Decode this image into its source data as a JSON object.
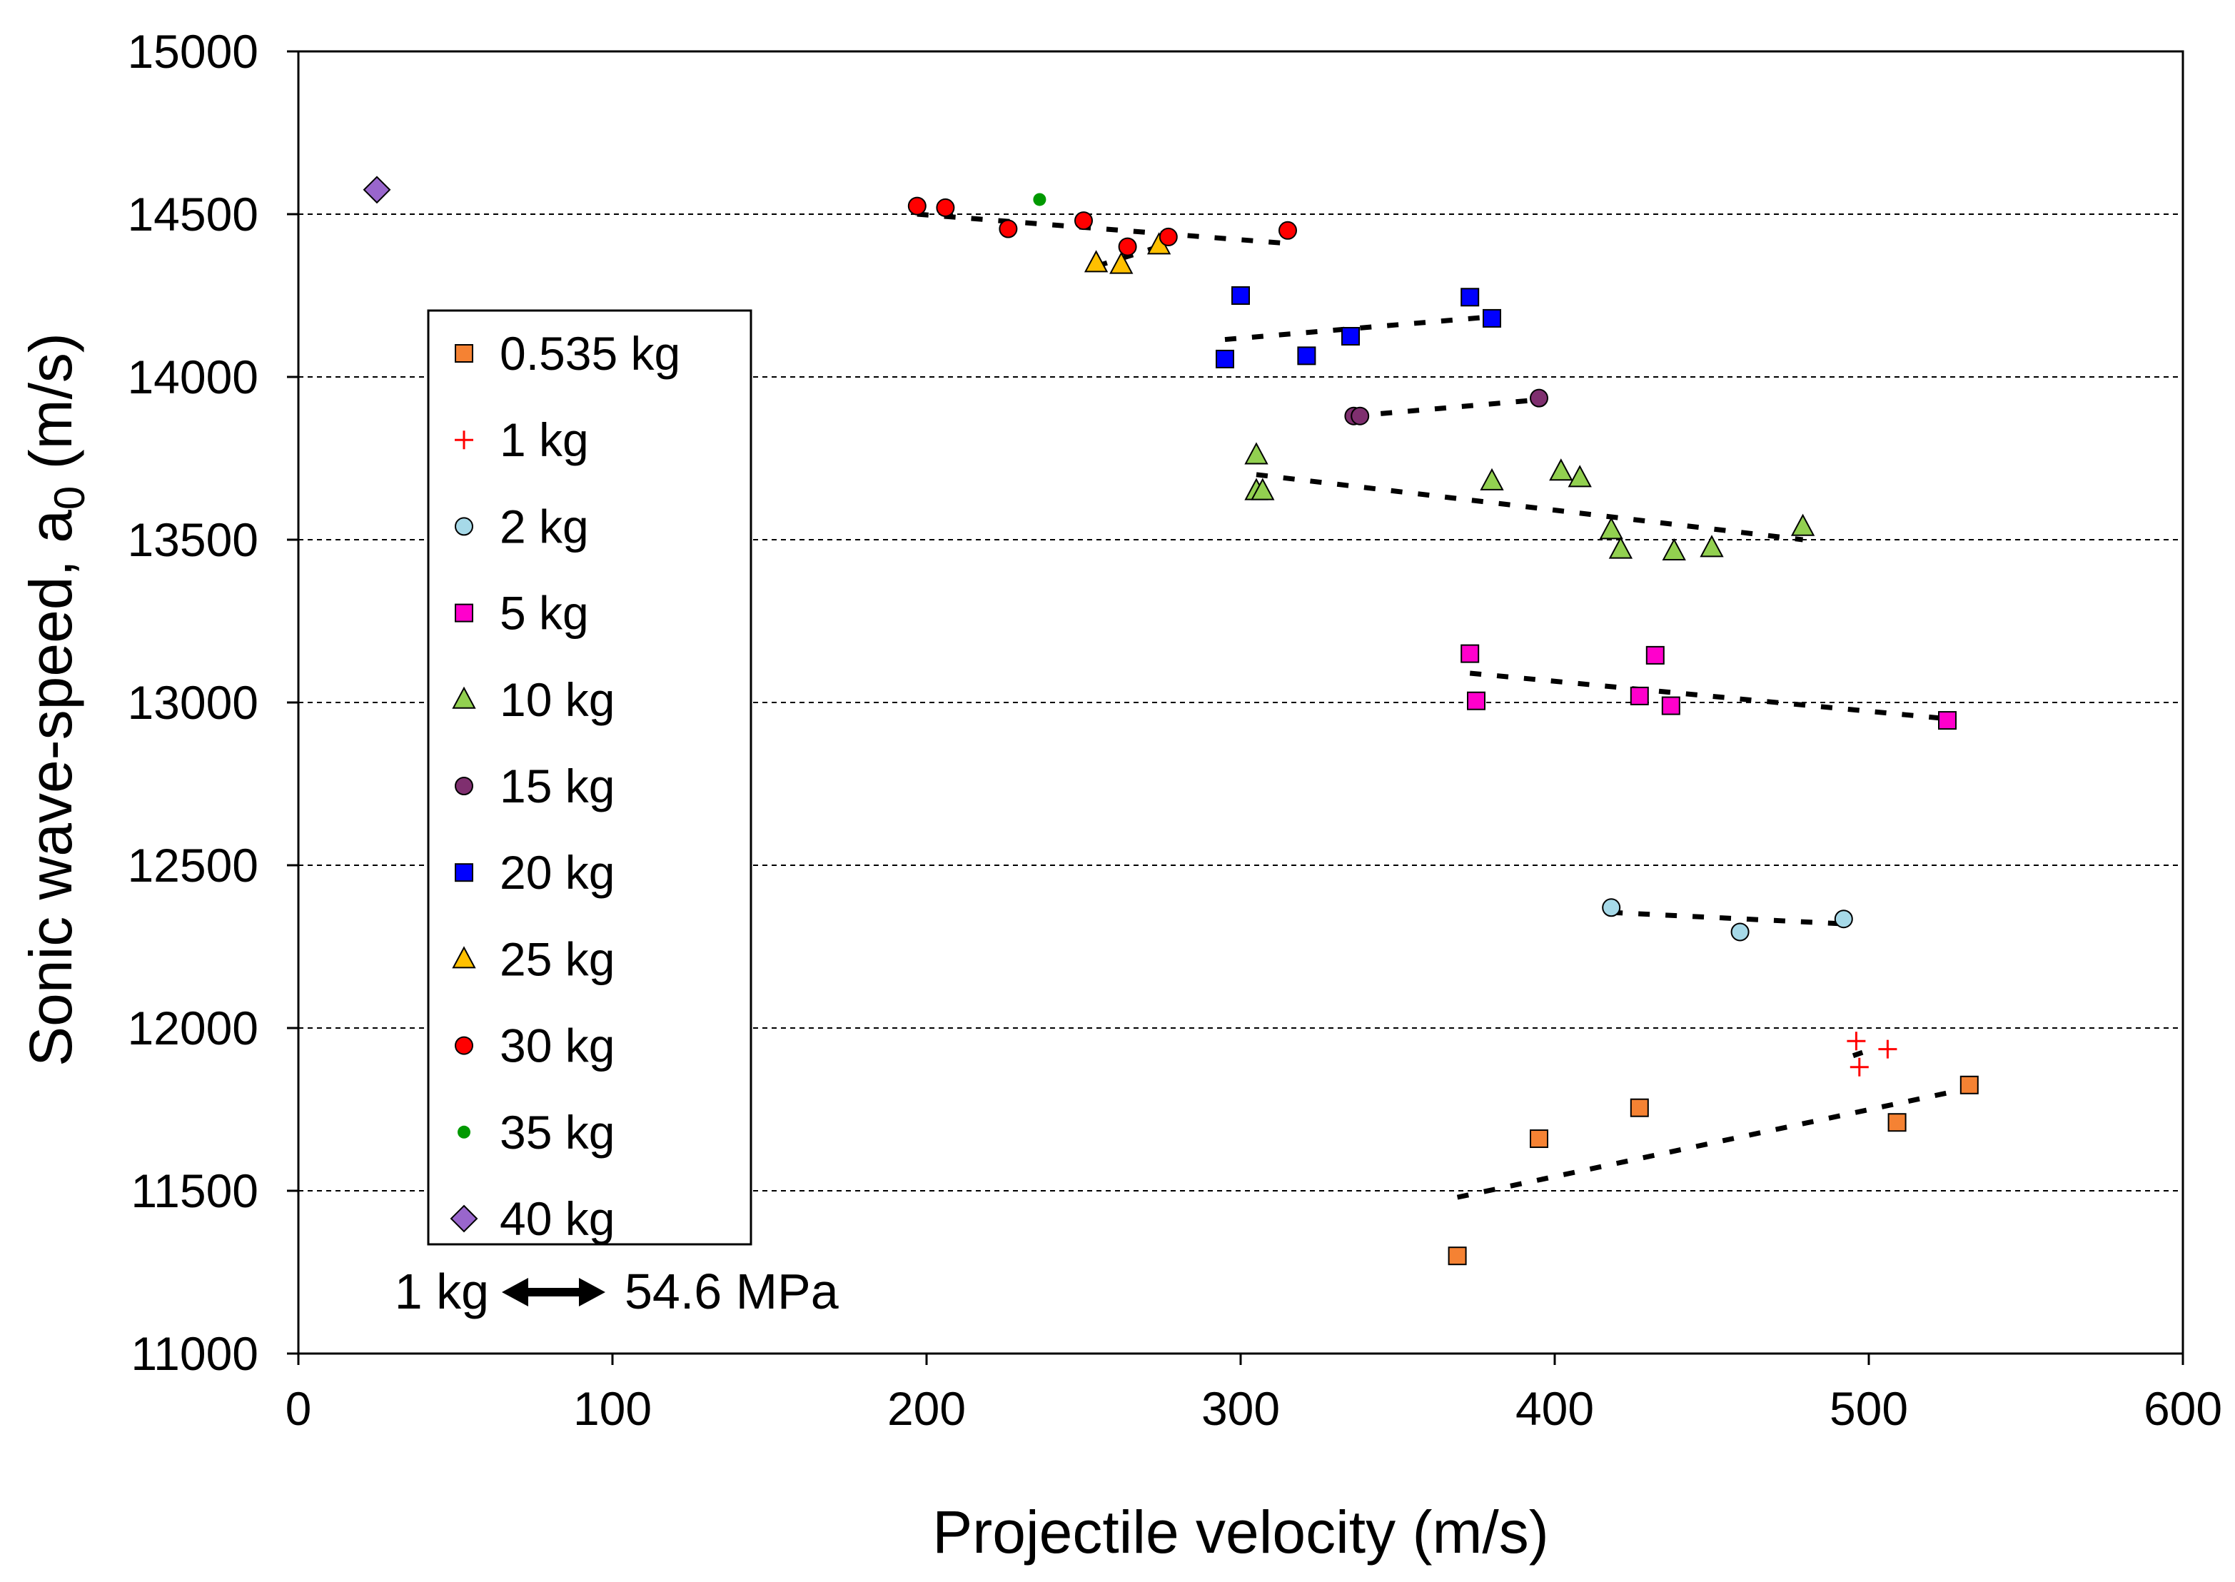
{
  "chart_data": {
    "type": "scatter",
    "xlabel": "Projectile velocity (m/s)",
    "ylabel_main": "Sonic wave-speed, a",
    "ylabel_sub": "0",
    "ylabel_unit": " (m/s)",
    "xlim": [
      0,
      600
    ],
    "ylim": [
      11000,
      15000
    ],
    "xticks": [
      0,
      100,
      200,
      300,
      400,
      500,
      600
    ],
    "yticks": [
      11000,
      11500,
      12000,
      12500,
      13000,
      13500,
      14000,
      14500,
      15000
    ],
    "grid": "horizontal dashed",
    "legend_position": "left",
    "annotation": {
      "left": "1 kg",
      "right": "54.6 MPa"
    },
    "series": [
      {
        "name": "0.535 kg",
        "marker": "square",
        "color": "#f58233",
        "points": [
          [
            369,
            11300
          ],
          [
            395,
            11660
          ],
          [
            427,
            11755
          ],
          [
            509,
            11710
          ],
          [
            532,
            11825
          ]
        ],
        "trend": [
          [
            369,
            11480
          ],
          [
            532,
            11815
          ]
        ]
      },
      {
        "name": "1 kg",
        "marker": "plus",
        "color": "#ff0000",
        "points": [
          [
            496,
            11960
          ],
          [
            497,
            11880
          ],
          [
            506,
            11935
          ]
        ],
        "trend": [
          [
            495,
            11915
          ],
          [
            498,
            11925
          ]
        ]
      },
      {
        "name": "2 kg",
        "marker": "circle",
        "color": "#a6d9e8",
        "points": [
          [
            418,
            12370
          ],
          [
            459,
            12295
          ],
          [
            492,
            12335
          ]
        ],
        "trend": [
          [
            418,
            12355
          ],
          [
            492,
            12320
          ]
        ]
      },
      {
        "name": "5 kg",
        "marker": "square",
        "color": "#ff00cc",
        "points": [
          [
            373,
            13150
          ],
          [
            375,
            13005
          ],
          [
            427,
            13020
          ],
          [
            432,
            13145
          ],
          [
            437,
            12990
          ],
          [
            525,
            12945
          ]
        ],
        "trend": [
          [
            373,
            13090
          ],
          [
            525,
            12950
          ]
        ]
      },
      {
        "name": "10 kg",
        "marker": "triangle",
        "color": "#92d050",
        "points": [
          [
            305,
            13760
          ],
          [
            305,
            13650
          ],
          [
            307,
            13650
          ],
          [
            380,
            13680
          ],
          [
            402,
            13710
          ],
          [
            408,
            13690
          ],
          [
            418,
            13530
          ],
          [
            421,
            13470
          ],
          [
            438,
            13465
          ],
          [
            450,
            13475
          ],
          [
            479,
            13540
          ]
        ],
        "trend": [
          [
            305,
            13700
          ],
          [
            479,
            13500
          ]
        ]
      },
      {
        "name": "15 kg",
        "marker": "circle",
        "color": "#7f2f6f",
        "points": [
          [
            336,
            13880
          ],
          [
            338,
            13880
          ],
          [
            395,
            13935
          ]
        ],
        "trend": [
          [
            336,
            13880
          ],
          [
            395,
            13930
          ]
        ]
      },
      {
        "name": "20 kg",
        "marker": "square",
        "color": "#0000ff",
        "points": [
          [
            295,
            14055
          ],
          [
            300,
            14250
          ],
          [
            321,
            14065
          ],
          [
            335,
            14125
          ],
          [
            373,
            14245
          ],
          [
            380,
            14180
          ]
        ],
        "trend": [
          [
            295,
            14115
          ],
          [
            380,
            14185
          ]
        ]
      },
      {
        "name": "25 kg",
        "marker": "triangle",
        "color": "#ffc000",
        "points": [
          [
            254,
            14350
          ],
          [
            262,
            14345
          ],
          [
            274,
            14405
          ]
        ],
        "trend": [
          [
            254,
            14340
          ],
          [
            274,
            14400
          ]
        ]
      },
      {
        "name": "30 kg",
        "marker": "circle",
        "color": "#ff0000",
        "points": [
          [
            197,
            14525
          ],
          [
            206,
            14520
          ],
          [
            226,
            14455
          ],
          [
            250,
            14480
          ],
          [
            264,
            14400
          ],
          [
            277,
            14430
          ],
          [
            315,
            14450
          ]
        ],
        "trend": [
          [
            197,
            14500
          ],
          [
            315,
            14410
          ]
        ]
      },
      {
        "name": "35 kg",
        "marker": "smallcircle",
        "color": "#009900",
        "points": [
          [
            236,
            14545
          ]
        ],
        "trend": null
      },
      {
        "name": "40 kg",
        "marker": "diamond",
        "color": "#9966cc",
        "points": [
          [
            25,
            14575
          ]
        ],
        "trend": null
      }
    ]
  }
}
